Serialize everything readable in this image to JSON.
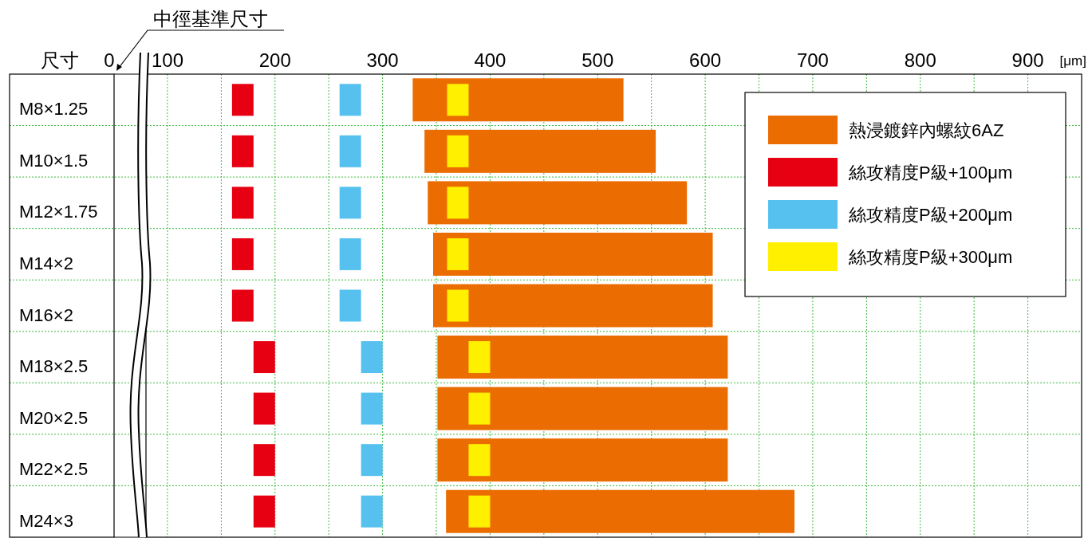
{
  "chart_data": {
    "type": "bar",
    "orientation": "horizontal",
    "ylabel": "尺寸",
    "xlabel": "[μm]",
    "annotations": [
      "0",
      "中徑基準尺寸"
    ],
    "categories": [
      "M8×1.25",
      "M10×1.5",
      "M12×1.75",
      "M14×2",
      "M16×2",
      "M18×2.5",
      "M20×2.5",
      "M22×2.5",
      "M24×3"
    ],
    "series": [
      {
        "name": "熱浸鍍鋅內螺紋6AZ",
        "color": "#eb6c00",
        "base": [
          328,
          339,
          342,
          347,
          347,
          351,
          351,
          351,
          359
        ],
        "values": [
          196,
          215,
          241,
          260,
          260,
          270,
          270,
          270,
          324
        ]
      },
      {
        "name": "絲攻精度P級+100μm",
        "color": "#e60012",
        "base": [
          160,
          160,
          160,
          160,
          160,
          180,
          180,
          180,
          180
        ],
        "values": [
          20,
          20,
          20,
          20,
          20,
          20,
          20,
          20,
          20
        ]
      },
      {
        "name": "絲攻精度P級+200μm",
        "color": "#56c1ef",
        "base": [
          260,
          260,
          260,
          260,
          260,
          280,
          280,
          280,
          280
        ],
        "values": [
          20,
          20,
          20,
          20,
          20,
          20,
          20,
          20,
          20
        ]
      },
      {
        "name": "絲攻精度P級+300μm",
        "color": "#fff000",
        "base": [
          360,
          360,
          360,
          360,
          360,
          380,
          380,
          380,
          380
        ],
        "values": [
          20,
          20,
          20,
          20,
          20,
          20,
          20,
          20,
          20
        ]
      }
    ],
    "xlim": [
      80,
      950
    ],
    "xticks": [
      100,
      200,
      300,
      400,
      500,
      600,
      700,
      800,
      900
    ],
    "grid": true,
    "legend": "top right"
  }
}
